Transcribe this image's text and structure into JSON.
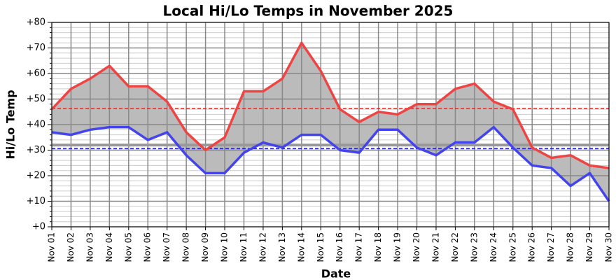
{
  "chart_data": {
    "type": "line",
    "title": "Local Hi/Lo Temps in November 2025",
    "x_label": "Date",
    "y_label": "Hi/Lo Temp",
    "categories": [
      "Nov 01",
      "Nov 02",
      "Nov 03",
      "Nov 04",
      "Nov 05",
      "Nov 06",
      "Nov 07",
      "Nov 08",
      "Nov 09",
      "Nov 10",
      "Nov 11",
      "Nov 12",
      "Nov 13",
      "Nov 14",
      "Nov 15",
      "Nov 16",
      "Nov 17",
      "Nov 18",
      "Nov 19",
      "Nov 20",
      "Nov 21",
      "Nov 22",
      "Nov 23",
      "Nov 24",
      "Nov 25",
      "Nov 26",
      "Nov 27",
      "Nov 28",
      "Nov 29",
      "Nov 30"
    ],
    "series": [
      {
        "color": "#ee4444",
        "values": [
          46,
          54,
          58,
          63,
          55,
          55,
          49,
          37,
          30,
          35,
          53,
          53,
          58,
          72,
          61,
          46,
          41,
          45,
          44,
          48,
          48,
          54,
          56,
          49,
          46,
          31,
          27,
          28,
          24,
          23
        ]
      },
      {
        "color": "#4444ee",
        "values": [
          37,
          36,
          38,
          39,
          39,
          34,
          37,
          28,
          21,
          21,
          29,
          33,
          31,
          36,
          36,
          30,
          29,
          38,
          38,
          31,
          28,
          33,
          33,
          39,
          31,
          24,
          23,
          16,
          21,
          10
        ]
      }
    ],
    "fill_color": "#bbbbbb",
    "reference_lines": [
      {
        "value": 32,
        "color": "#999999",
        "style": "solid"
      },
      {
        "value": 46.3,
        "color": "#ee2222",
        "style": "dashed"
      },
      {
        "value": 30.6,
        "color": "#2222cc",
        "style": "dashed"
      }
    ],
    "ylim": [
      0,
      80
    ],
    "yticks": [
      {
        "value": 0,
        "label": "+0"
      },
      {
        "value": 10,
        "label": "+10"
      },
      {
        "value": 20,
        "label": "+20"
      },
      {
        "value": 30,
        "label": "+30"
      },
      {
        "value": 40,
        "label": "+40"
      },
      {
        "value": 50,
        "label": "+50"
      },
      {
        "value": 60,
        "label": "+60"
      },
      {
        "value": 70,
        "label": "+70"
      },
      {
        "value": 80,
        "label": "+80"
      }
    ],
    "grid": true
  }
}
